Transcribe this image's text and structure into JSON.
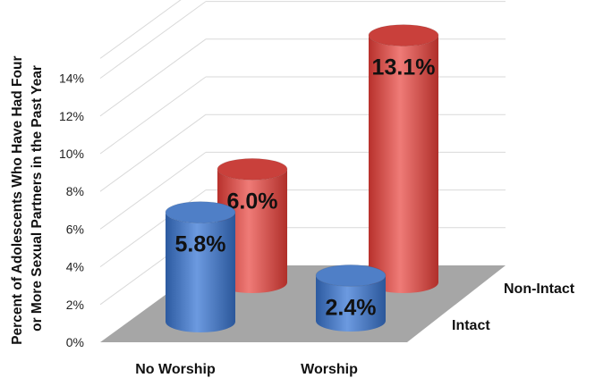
{
  "chart_data": {
    "type": "bar",
    "categories": [
      "No Worship",
      "Worship"
    ],
    "series": [
      {
        "name": "Intact",
        "values": [
          5.8,
          2.4
        ],
        "labels": [
          "5.8%",
          "2.4%"
        ],
        "color": "#4a7cc4"
      },
      {
        "name": "Non-Intact",
        "values": [
          6.0,
          13.1
        ],
        "labels": [
          "6.0%",
          "13.1%"
        ],
        "color": "#d9534f"
      }
    ],
    "ylabel_lines": [
      "Percent of Adolescents Who Have Had Four",
      "or More Sexual Partners in the Past Year"
    ],
    "yticks": [
      "0%",
      "2%",
      "4%",
      "6%",
      "8%",
      "10%",
      "12%",
      "14%"
    ],
    "ylim": [
      0,
      14
    ],
    "grid": true,
    "floor_color": "#a6a6a6"
  }
}
